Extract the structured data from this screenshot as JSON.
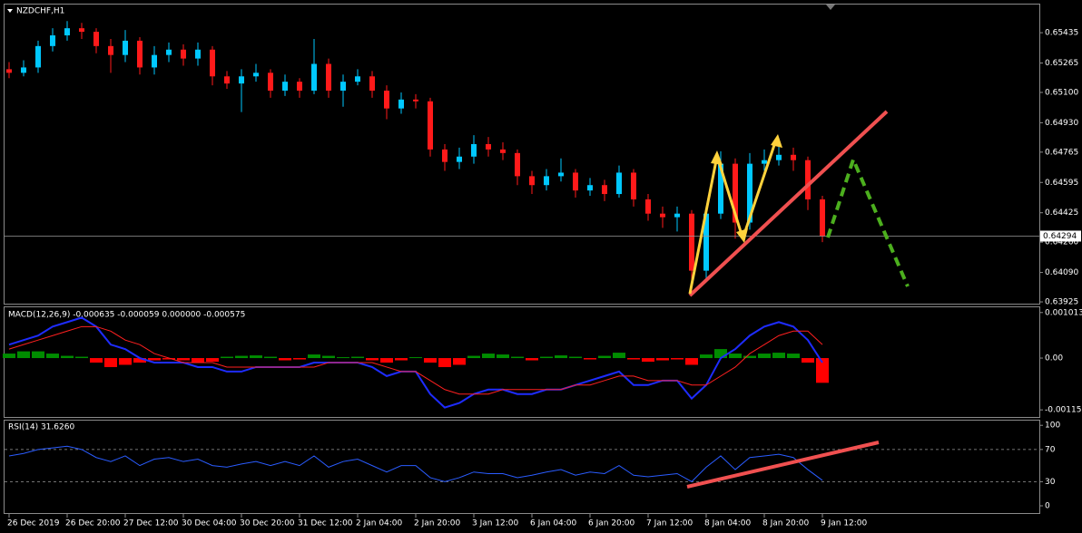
{
  "chart_data": [
    {
      "type": "candlestick",
      "title": "NZDCHF,H1",
      "categories": [
        "26 Dec 2019",
        null,
        null,
        null,
        "26 Dec 20:00",
        null,
        null,
        null,
        "27 Dec 12:00",
        null,
        null,
        null,
        "30 Dec 04:00",
        null,
        null,
        null,
        "30 Dec 20:00",
        null,
        null,
        null,
        "31 Dec 12:00",
        null,
        null,
        null,
        "2 Jan 04:00",
        null,
        null,
        null,
        "2 Jan 20:00",
        null,
        null,
        null,
        "3 Jan 12:00",
        null,
        null,
        null,
        "6 Jan 04:00",
        null,
        null,
        null,
        "6 Jan 20:00",
        null,
        null,
        null,
        "7 Jan 12:00",
        null,
        null,
        null,
        "8 Jan 04:00",
        null,
        null,
        null,
        "8 Jan 20:00",
        null,
        null,
        null,
        "9 Jan 12:00"
      ],
      "open": [
        0.6523,
        0.6521,
        0.6524,
        0.6536,
        0.6542,
        0.6546,
        0.6544,
        0.6536,
        0.6531,
        0.6539,
        0.6524,
        0.6531,
        0.6534,
        0.6529,
        0.6534,
        0.6519,
        0.6515,
        0.6519,
        0.6521,
        0.6511,
        0.6516,
        0.6511,
        0.6526,
        0.6511,
        0.6516,
        0.6519,
        0.6511,
        0.6501,
        0.6506,
        0.6505,
        0.6478,
        0.6471,
        0.6474,
        0.6481,
        0.6478,
        0.6476,
        0.6463,
        0.6458,
        0.6463,
        0.6465,
        0.6455,
        0.6458,
        0.6453,
        0.6465,
        0.645,
        0.6442,
        0.644,
        0.6442,
        0.641,
        0.6442,
        0.647,
        0.6437,
        0.647,
        0.6472,
        0.6475,
        0.6472,
        0.645
      ],
      "high": [
        0.6527,
        0.6528,
        0.6539,
        0.6546,
        0.655,
        0.6549,
        0.6546,
        0.654,
        0.6545,
        0.6541,
        0.6536,
        0.6538,
        0.6537,
        0.6538,
        0.6536,
        0.6522,
        0.6523,
        0.6526,
        0.6523,
        0.652,
        0.6518,
        0.654,
        0.6529,
        0.652,
        0.6523,
        0.6522,
        0.6514,
        0.651,
        0.6509,
        0.6507,
        0.6481,
        0.6479,
        0.6486,
        0.6485,
        0.6482,
        0.6478,
        0.6466,
        0.6467,
        0.6473,
        0.6467,
        0.6462,
        0.6461,
        0.6469,
        0.6467,
        0.6453,
        0.6446,
        0.6446,
        0.6444,
        0.6445,
        0.6477,
        0.6473,
        0.6476,
        0.6478,
        0.648,
        0.6479,
        0.6474,
        0.6452
      ],
      "low": [
        0.6518,
        0.6519,
        0.6521,
        0.6533,
        0.6539,
        0.654,
        0.6532,
        0.6521,
        0.6527,
        0.652,
        0.652,
        0.6527,
        0.6525,
        0.6525,
        0.6514,
        0.6512,
        0.6499,
        0.6516,
        0.6507,
        0.6508,
        0.6507,
        0.6509,
        0.6507,
        0.6502,
        0.6514,
        0.6507,
        0.6495,
        0.6498,
        0.6501,
        0.6474,
        0.6466,
        0.6467,
        0.647,
        0.6474,
        0.6472,
        0.6458,
        0.6453,
        0.6455,
        0.646,
        0.6451,
        0.6452,
        0.6449,
        0.6451,
        0.6446,
        0.6438,
        0.6434,
        0.6432,
        0.6397,
        0.6405,
        0.6439,
        0.6428,
        0.6433,
        0.6466,
        0.6469,
        0.6466,
        0.6444,
        0.6426
      ],
      "close": [
        0.6521,
        0.6524,
        0.6536,
        0.6542,
        0.6546,
        0.6544,
        0.6536,
        0.6531,
        0.6539,
        0.6524,
        0.6531,
        0.6534,
        0.6529,
        0.6534,
        0.6519,
        0.6515,
        0.6519,
        0.6521,
        0.6511,
        0.6516,
        0.6511,
        0.6526,
        0.6511,
        0.6516,
        0.6519,
        0.6511,
        0.6501,
        0.6506,
        0.6505,
        0.6478,
        0.6471,
        0.6474,
        0.6481,
        0.6478,
        0.6476,
        0.6463,
        0.6458,
        0.6463,
        0.6465,
        0.6455,
        0.6458,
        0.6453,
        0.6465,
        0.645,
        0.6442,
        0.644,
        0.6442,
        0.641,
        0.6442,
        0.647,
        0.6437,
        0.647,
        0.6472,
        0.6475,
        0.6472,
        0.645,
        0.64294
      ],
      "up_color": "#00c8ff",
      "down_color": "#ff1a1a",
      "last_price": 0.64294,
      "ylim": [
        0.63915,
        0.65593
      ],
      "yticks": [
        0.65435,
        0.65265,
        {
          "value": 0.651,
          "label": "0.65100"
        },
        {
          "value": 0.6493,
          "label": "0.64930"
        },
        0.64765,
        0.64595,
        0.64425,
        {
          "value": 0.6426,
          "label": "0.64260"
        },
        {
          "value": 0.6409,
          "label": "0.64090"
        },
        0.63925
      ]
    },
    {
      "type": "macd",
      "title": "MACD(12,26,9) -0.000635 -0.000059 0.000000 -0.000575",
      "histogram": [
        0.0001,
        0.00015,
        0.00015,
        0.0001,
        5e-05,
        3e-05,
        -0.0001,
        -0.0002,
        -0.00015,
        -0.0001,
        -5e-05,
        -3e-05,
        -5e-05,
        -0.0001,
        -8e-05,
        3e-05,
        5e-05,
        6e-05,
        3e-05,
        -5e-05,
        -3e-05,
        8e-05,
        5e-05,
        2e-05,
        3e-05,
        -5e-05,
        -0.0001,
        -5e-05,
        2e-05,
        -0.0001,
        -0.0002,
        -0.00015,
        5e-05,
        0.0001,
        8e-05,
        3e-05,
        -5e-05,
        3e-05,
        6e-05,
        3e-05,
        -3e-05,
        5e-05,
        0.00012,
        -3e-05,
        -8e-05,
        -5e-05,
        -3e-05,
        -0.00015,
        8e-05,
        0.0002,
        0.0001,
        5e-05,
        0.0001,
        0.00012,
        0.0001,
        -0.0001,
        -0.00055
      ],
      "up_color": "#008c00",
      "down_color": "#ff0000",
      "series": [
        {
          "color": "#1e2cff",
          "values": [
            0.0003,
            0.0004,
            0.0005,
            0.0007,
            0.0008,
            0.0009,
            0.0007,
            0.0003,
            0.0002,
            0,
            -0.0001,
            -0.0001,
            -0.0001,
            -0.0002,
            -0.0002,
            -0.0003,
            -0.0003,
            -0.0002,
            -0.0002,
            -0.0002,
            -0.0002,
            -0.0001,
            -0.0001,
            -0.0001,
            -0.0001,
            -0.0002,
            -0.0004,
            -0.0003,
            -0.0003,
            -0.0008,
            -0.0011,
            -0.001,
            -0.0008,
            -0.0007,
            -0.0007,
            -0.0008,
            -0.0008,
            -0.0007,
            -0.0007,
            -0.0006,
            -0.0005,
            -0.0004,
            -0.0003,
            -0.0006,
            -0.0006,
            -0.0005,
            -0.0005,
            -0.0009,
            -0.0006,
            0,
            0.0002,
            0.0005,
            0.0007,
            0.0008,
            0.0007,
            0.0004,
            -0.0001
          ]
        },
        {
          "color": "#ff2020",
          "values": [
            0.0002,
            0.0003,
            0.0004,
            0.0005,
            0.0006,
            0.0007,
            0.0007,
            0.0006,
            0.0004,
            0.0003,
            0.0001,
            0,
            -0.0001,
            -0.0001,
            -0.0001,
            -0.0002,
            -0.0002,
            -0.0002,
            -0.0002,
            -0.0002,
            -0.0002,
            -0.0002,
            -0.0001,
            -0.0001,
            -0.0001,
            -0.0001,
            -0.0002,
            -0.0003,
            -0.0003,
            -0.0005,
            -0.0007,
            -0.0008,
            -0.0008,
            -0.0008,
            -0.0007,
            -0.0007,
            -0.0007,
            -0.0007,
            -0.0007,
            -0.0006,
            -0.0006,
            -0.0005,
            -0.0004,
            -0.0004,
            -0.0005,
            -0.0005,
            -0.0005,
            -0.0006,
            -0.0006,
            -0.0004,
            -0.0002,
            0.0001,
            0.0003,
            0.0005,
            0.0006,
            0.0006,
            0.0003
          ]
        }
      ],
      "ylim": [
        -0.00131,
        0.00115
      ],
      "yticks": [
        0.001013,
        {
          "value": 0,
          "label": "0.00"
        },
        -0.001152
      ]
    },
    {
      "type": "line",
      "title": "RSI(14) 31.6260",
      "color": "#2a5cff",
      "values": [
        62,
        65,
        70,
        72,
        74,
        70,
        60,
        55,
        62,
        50,
        58,
        60,
        55,
        58,
        50,
        48,
        52,
        55,
        50,
        55,
        50,
        62,
        48,
        55,
        58,
        50,
        42,
        50,
        50,
        35,
        30,
        35,
        42,
        40,
        40,
        35,
        38,
        42,
        45,
        38,
        42,
        40,
        50,
        38,
        36,
        38,
        40,
        30,
        48,
        62,
        45,
        60,
        62,
        64,
        60,
        45,
        31.626
      ],
      "levels": [
        70,
        30
      ],
      "ylim": [
        -9,
        107
      ],
      "yticks": [
        100,
        70,
        30,
        0
      ]
    }
  ]
}
